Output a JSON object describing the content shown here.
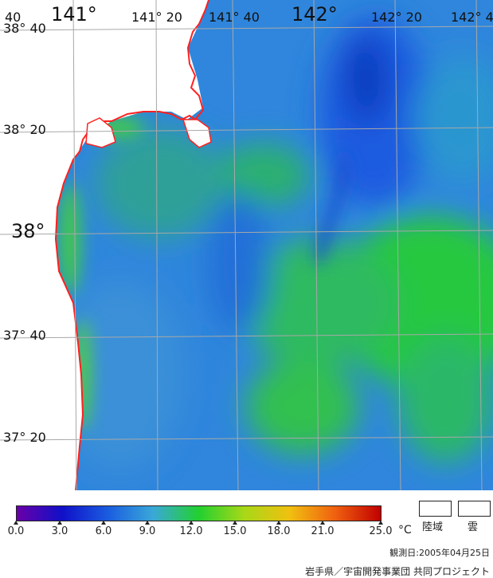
{
  "map": {
    "lon_labels": [
      "141°",
      "141° 20",
      "141° 40",
      "142°",
      "142° 20",
      "142° 4"
    ],
    "lon_label_partial_left": "40",
    "lat_labels": [
      "38° 40",
      "38° 20",
      "38°",
      "37° 40",
      "37° 20"
    ],
    "colors": {
      "land": "#ffffff",
      "coastline": "#ff2020",
      "grid": "#a8a8a8"
    }
  },
  "legend": {
    "ticks": [
      "0.0",
      "3.0",
      "6.0",
      "9.0",
      "12.0",
      "15.0",
      "18.0",
      "21.0",
      "25.0"
    ],
    "unit": "°C",
    "land_label": "陸域",
    "cloud_label": "雲",
    "colormap": [
      "#6a00a8",
      "#1010c8",
      "#1a5ce0",
      "#3aa8d8",
      "#22d030",
      "#a8d818",
      "#f0c010",
      "#f06010",
      "#c00000"
    ]
  },
  "observation_date": "観測日:2005年04月25日",
  "credit": "岩手県／宇宙開発事業団 共同プロジェクト"
}
